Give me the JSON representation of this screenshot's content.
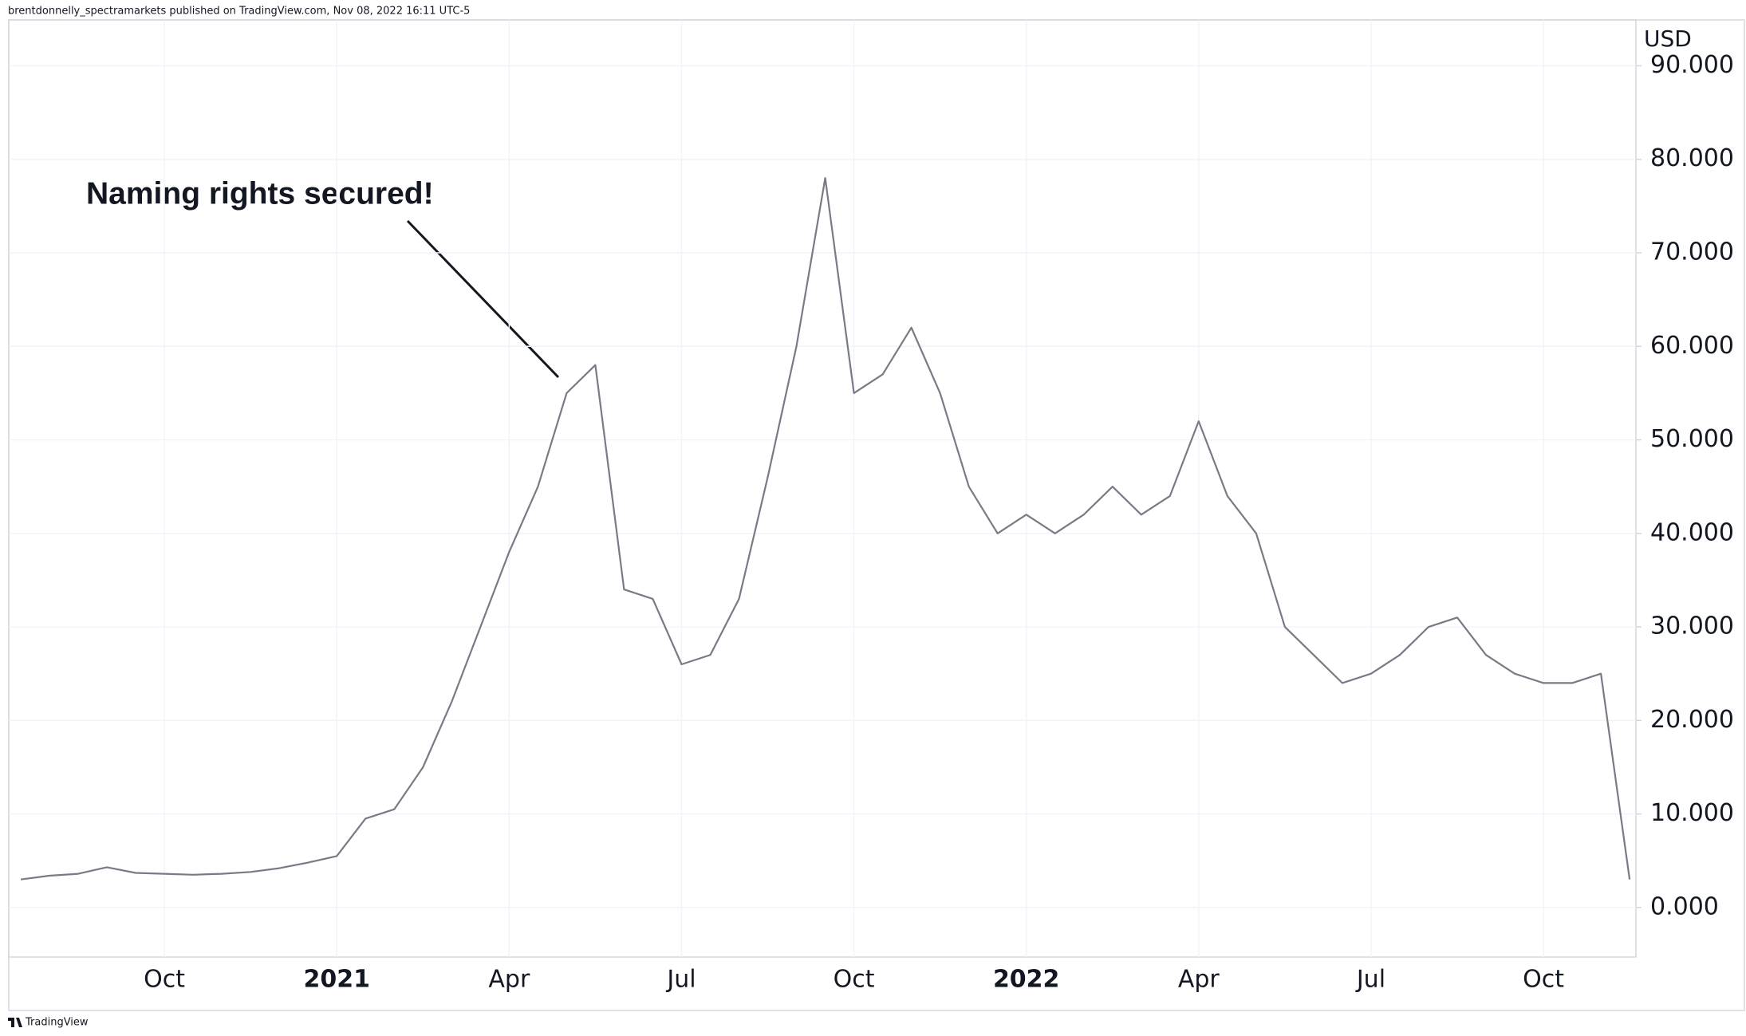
{
  "header": {
    "text": "brentdonnelly_spectramarkets published on TradingView.com, Nov 08, 2022 16:11 UTC-5"
  },
  "footer": {
    "text": "TradingView"
  },
  "chart_data": {
    "type": "line",
    "currency": "USD",
    "annotation": "Naming rights secured!",
    "color": "#787b86",
    "grid": true,
    "categories": [
      null,
      null,
      null,
      null,
      null,
      "Oct",
      null,
      null,
      null,
      null,
      null,
      "2021",
      null,
      null,
      null,
      null,
      null,
      "Apr",
      null,
      null,
      null,
      null,
      null,
      "Jul",
      null,
      null,
      null,
      null,
      null,
      "Oct",
      null,
      null,
      null,
      null,
      null,
      "2022",
      null,
      null,
      null,
      null,
      null,
      "Apr",
      null,
      null,
      null,
      null,
      null,
      "Jul",
      null,
      null,
      null,
      null,
      null,
      "Oct",
      null,
      null,
      null
    ],
    "values": [
      3.0,
      3.4,
      3.6,
      4.3,
      3.7,
      3.6,
      3.5,
      3.6,
      3.8,
      4.2,
      4.8,
      5.5,
      9.5,
      10.5,
      15,
      22,
      30,
      38,
      45,
      55,
      58,
      34,
      33,
      26,
      27,
      33,
      46,
      60,
      78,
      55,
      57,
      62,
      55,
      45,
      40,
      42,
      40,
      42,
      45,
      42,
      44,
      52,
      44,
      40,
      30,
      27,
      24,
      25,
      27,
      30,
      31,
      27,
      25,
      24,
      24,
      25,
      3
    ],
    "ylim": [
      -5.3,
      94.9
    ],
    "yticks": [
      {
        "value": 0,
        "label": "0.000"
      },
      {
        "value": 10,
        "label": "10.000"
      },
      {
        "value": 20,
        "label": "20.000"
      },
      {
        "value": 30,
        "label": "30.000"
      },
      {
        "value": 40,
        "label": "40.000"
      },
      {
        "value": 50,
        "label": "50.000"
      },
      {
        "value": 60,
        "label": "60.000"
      },
      {
        "value": 70,
        "label": "70.000"
      },
      {
        "value": 80,
        "label": "80.000"
      },
      {
        "value": 90,
        "label": "90.000"
      }
    ]
  }
}
